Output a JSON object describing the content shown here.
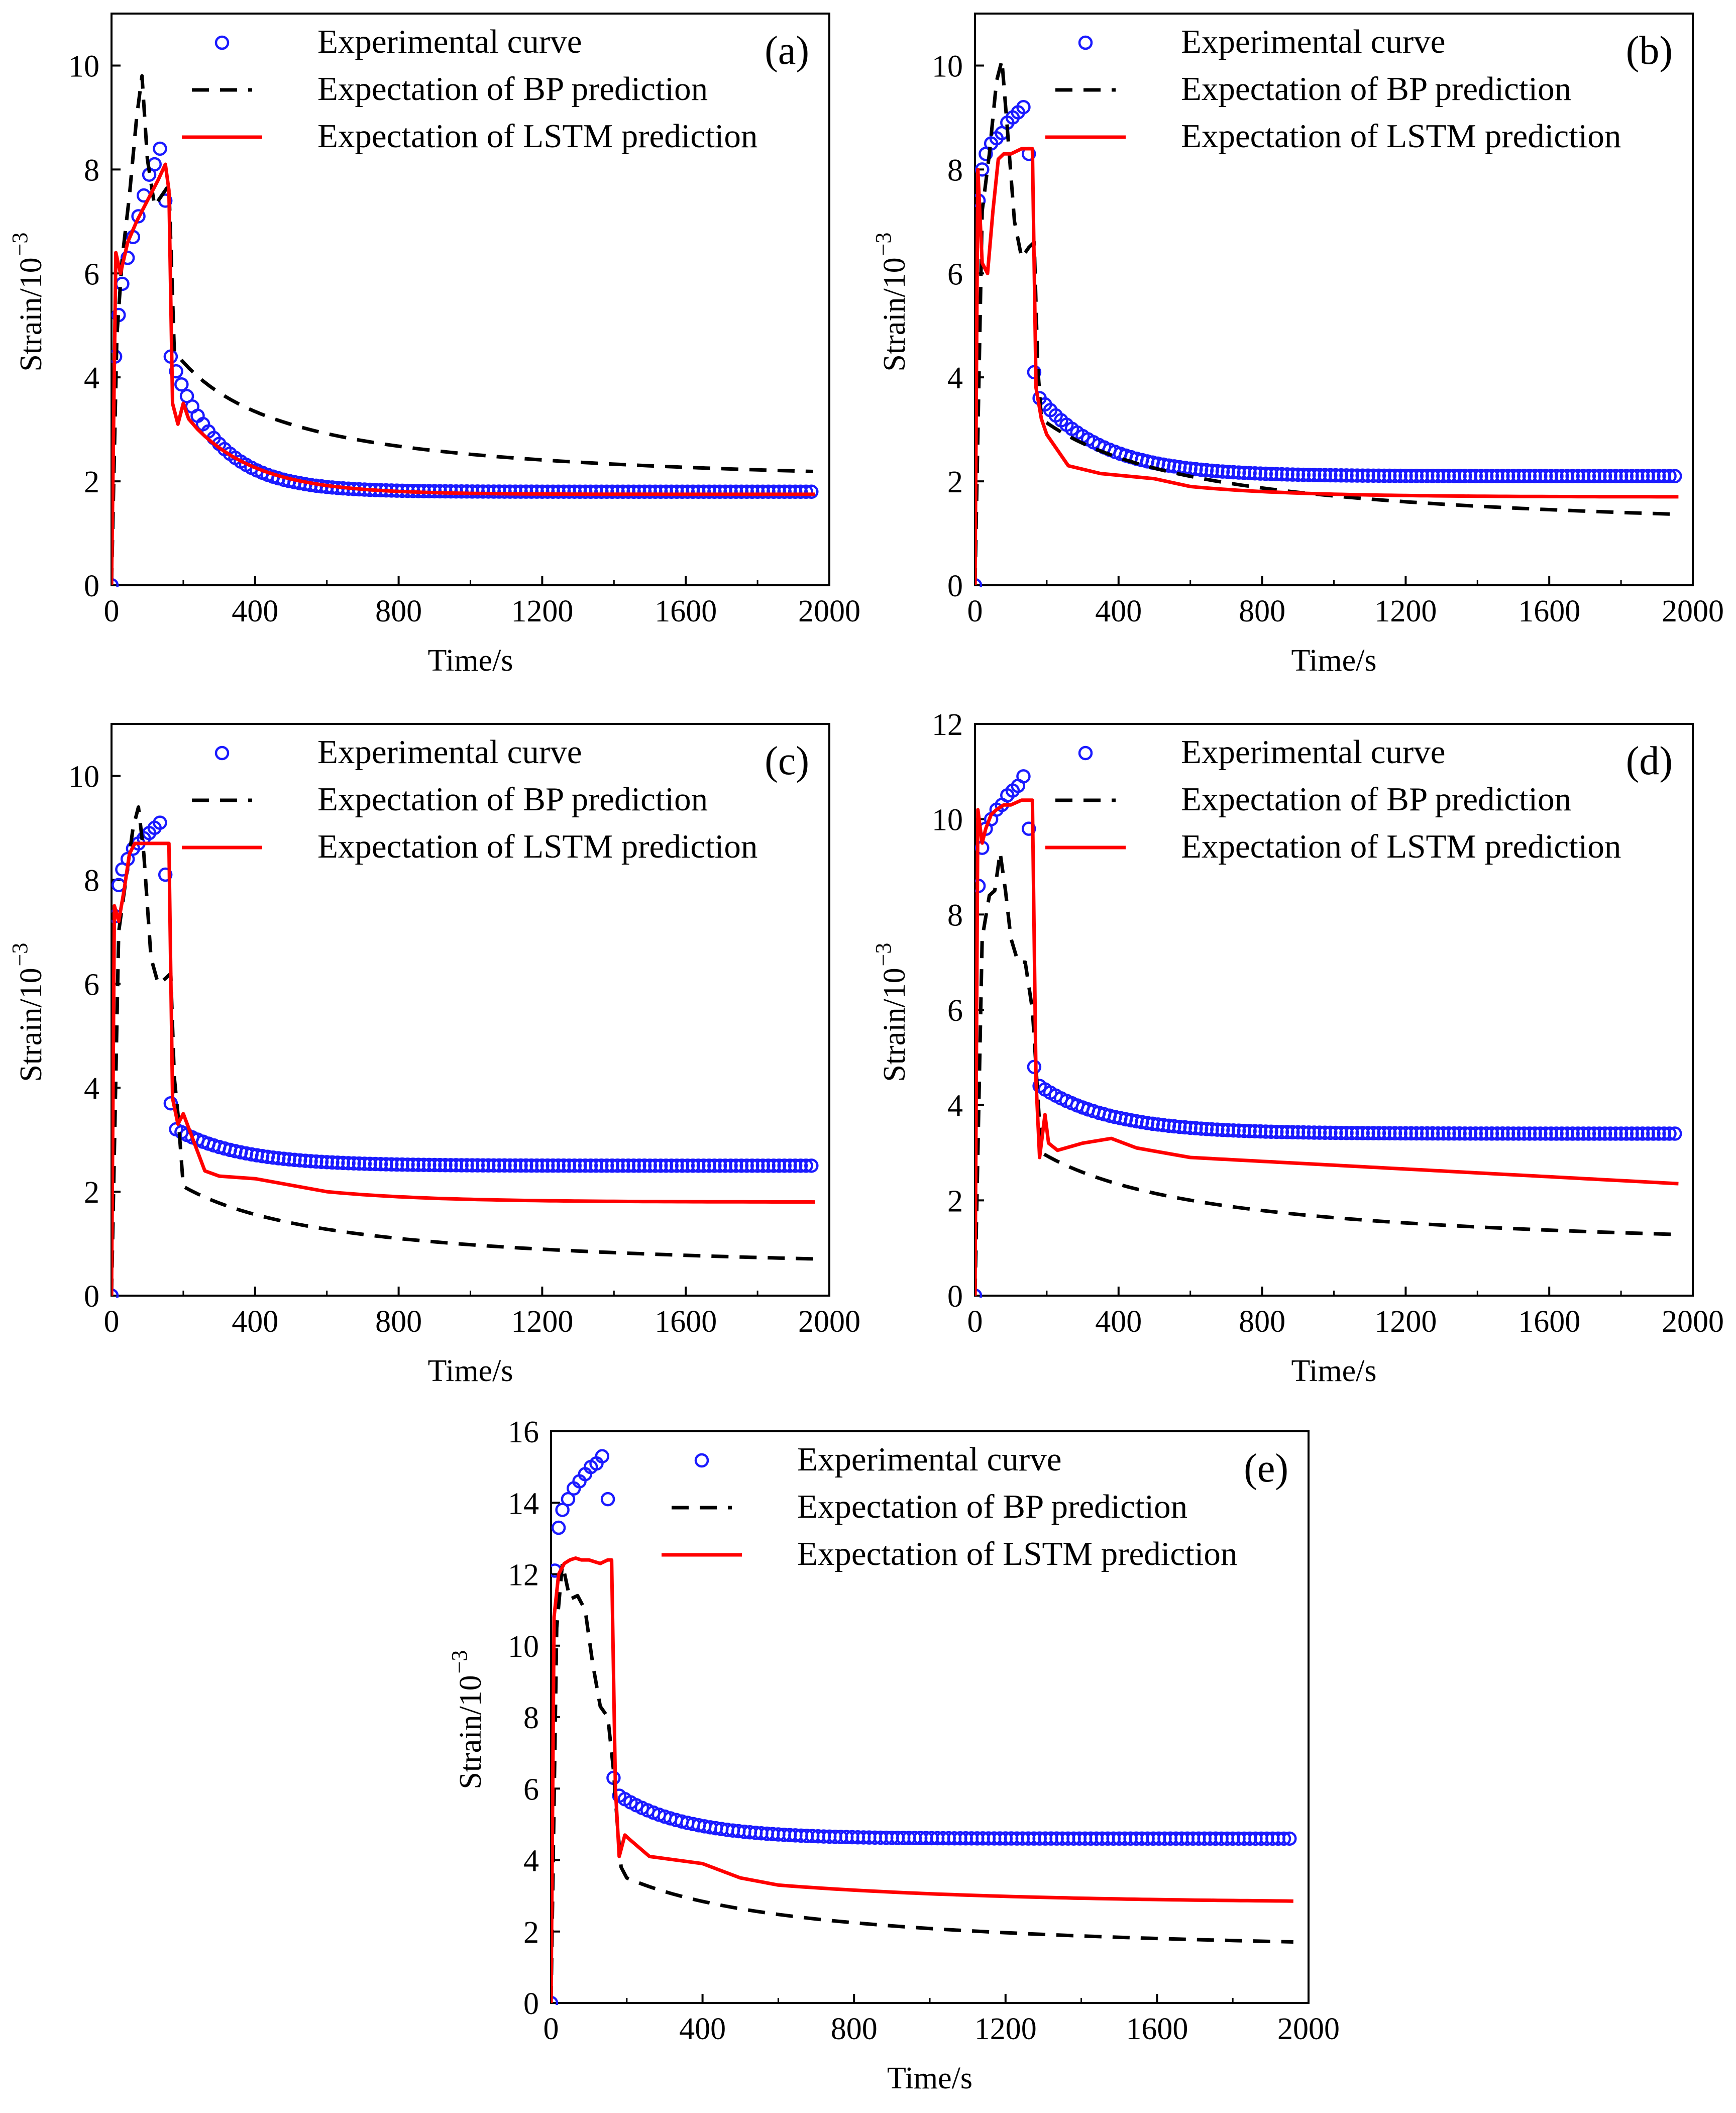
{
  "figure": {
    "panel_count": 5
  },
  "colors": {
    "experimental": "#1a1aff",
    "bp": "#000000",
    "lstm": "#ff0000"
  },
  "chart_data": [
    {
      "type": "line",
      "panel": "(a)",
      "xlabel": "Time/s",
      "ylabel": "Strain/10",
      "ylabel_exp": "−3",
      "xlim": [
        0,
        2000
      ],
      "ylim": [
        0,
        11
      ],
      "xticks": [
        "0",
        "400",
        "800",
        "1200",
        "1600",
        "2000"
      ],
      "xtick_values": [
        0,
        400,
        800,
        1200,
        1600,
        2000
      ],
      "yticks": [
        "0",
        "2",
        "4",
        "6",
        "8",
        "10"
      ],
      "ytick_values": [
        0,
        2,
        4,
        6,
        8,
        10
      ],
      "legend_position": "top-center",
      "series": [
        {
          "name": "Experimental curve",
          "style": "circles",
          "shape": "exp",
          "params": {
            "x": [
              0,
              10,
              20,
              30,
              45,
              60,
              75,
              90,
              105,
              120,
              135,
              150,
              165
            ],
            "y": [
              0,
              4.4,
              5.2,
              5.8,
              6.3,
              6.7,
              7.1,
              7.5,
              7.9,
              8.1,
              8.4,
              7.4,
              4.4
            ],
            "plateau": 1.8,
            "d1": 3.5,
            "decay": 130
          }
        },
        {
          "name": "Expectation of BP prediction",
          "style": "dashed",
          "shape": "bp",
          "params": {
            "x": [
              0,
              15,
              30,
              50,
              70,
              85,
              100,
              120,
              140,
              160,
              175
            ],
            "y": [
              0,
              4.8,
              6.3,
              7.5,
              9.0,
              9.8,
              8.2,
              7.3,
              7.5,
              7.7,
              4.5
            ],
            "plateau": 1.8,
            "d1": 2.5,
            "decay": 300
          }
        },
        {
          "name": "Expectation of LSTM prediction",
          "style": "solid",
          "shape": "lstm",
          "params": {
            "x": [
              0,
              12,
              25,
              45,
              70,
              100,
              130,
              150,
              160,
              170,
              185,
              200,
              215,
              240
            ],
            "y": [
              0,
              6.4,
              6.0,
              6.6,
              7.0,
              7.4,
              7.8,
              8.1,
              7.6,
              3.5,
              3.1,
              3.5,
              3.2,
              3.0
            ],
            "plateau": 1.75,
            "decay": 180
          }
        }
      ]
    },
    {
      "type": "line",
      "panel": "(b)",
      "xlabel": "Time/s",
      "ylabel": "Strain/10",
      "ylabel_exp": "−3",
      "xlim": [
        0,
        2000
      ],
      "ylim": [
        0,
        11
      ],
      "xticks": [
        "0",
        "400",
        "800",
        "1200",
        "1600",
        "2000"
      ],
      "xtick_values": [
        0,
        400,
        800,
        1200,
        1600,
        2000
      ],
      "yticks": [
        "0",
        "2",
        "4",
        "6",
        "8",
        "10"
      ],
      "ytick_values": [
        0,
        2,
        4,
        6,
        8,
        10
      ],
      "legend_position": "top-center",
      "series": [
        {
          "name": "Experimental curve",
          "style": "circles",
          "shape": "exp",
          "params": {
            "x": [
              0,
              10,
              20,
              30,
              45,
              60,
              75,
              90,
              105,
              120,
              135,
              150,
              165,
              180
            ],
            "y": [
              0,
              7.4,
              8.0,
              8.3,
              8.5,
              8.6,
              8.7,
              8.9,
              9.0,
              9.1,
              9.2,
              8.3,
              4.1,
              3.6
            ],
            "plateau": 2.1,
            "d1": 1.4,
            "decay": 180
          }
        },
        {
          "name": "Expectation of BP prediction",
          "style": "dashed",
          "shape": "bp",
          "params": {
            "x": [
              0,
              20,
              40,
              60,
              75,
              90,
              110,
              130,
              150,
              165,
              175,
              185
            ],
            "y": [
              0,
              7.2,
              8.3,
              9.7,
              10.1,
              8.8,
              7.0,
              6.3,
              6.5,
              6.6,
              4.2,
              3.2
            ],
            "plateau": 0.9,
            "d1": 2.3,
            "decay": 450
          }
        },
        {
          "name": "Expectation of LSTM prediction",
          "style": "solid",
          "shape": "lstm",
          "params": {
            "x": [
              0,
              8,
              20,
              35,
              50,
              65,
              80,
              100,
              130,
              150,
              160,
              170,
              185,
              200,
              260,
              350,
              500,
              600
            ],
            "y": [
              0,
              8.0,
              6.2,
              6.0,
              7.2,
              8.2,
              8.3,
              8.3,
              8.4,
              8.4,
              8.4,
              3.8,
              3.2,
              2.9,
              2.3,
              2.15,
              2.05,
              1.9
            ],
            "plateau": 1.7,
            "decay": 300
          }
        }
      ]
    },
    {
      "type": "line",
      "panel": "(c)",
      "xlabel": "Time/s",
      "ylabel": "Strain/10",
      "ylabel_exp": "−3",
      "xlim": [
        0,
        2000
      ],
      "ylim": [
        0,
        11
      ],
      "xticks": [
        "0",
        "400",
        "800",
        "1200",
        "1600",
        "2000"
      ],
      "xtick_values": [
        0,
        400,
        800,
        1200,
        1600,
        2000
      ],
      "yticks": [
        "0",
        "2",
        "4",
        "6",
        "8",
        "10"
      ],
      "ytick_values": [
        0,
        2,
        4,
        6,
        8,
        10
      ],
      "legend_position": "top-center",
      "series": [
        {
          "name": "Experimental curve",
          "style": "circles",
          "shape": "exp",
          "params": {
            "x": [
              0,
              10,
              20,
              30,
              45,
              60,
              75,
              90,
              105,
              120,
              135,
              150,
              165,
              180
            ],
            "y": [
              0,
              7.3,
              7.9,
              8.2,
              8.4,
              8.6,
              8.7,
              8.8,
              8.9,
              9.0,
              9.1,
              8.1,
              3.7,
              3.2
            ],
            "plateau": 2.5,
            "d1": 0.7,
            "decay": 180
          }
        },
        {
          "name": "Expectation of BP prediction",
          "style": "dashed",
          "shape": "bp",
          "params": {
            "x": [
              0,
              20,
              40,
              60,
              75,
              90,
              110,
              130,
              150,
              165,
              175,
              185,
              200
            ],
            "y": [
              0,
              7.0,
              8.0,
              9.0,
              9.4,
              8.5,
              6.5,
              6.0,
              6.1,
              6.2,
              4.2,
              3.5,
              2.1
            ],
            "plateau": 0.35,
            "d1": 1.6,
            "decay": 450
          }
        },
        {
          "name": "Expectation of LSTM prediction",
          "style": "solid",
          "shape": "lstm",
          "params": {
            "x": [
              0,
              8,
              20,
              35,
              50,
              65,
              80,
              100,
              130,
              150,
              160,
              170,
              185,
              200,
              260,
              300,
              400,
              600
            ],
            "y": [
              0,
              7.5,
              7.2,
              7.8,
              8.5,
              8.7,
              8.7,
              8.7,
              8.7,
              8.7,
              8.7,
              3.8,
              3.3,
              3.5,
              2.4,
              2.3,
              2.25,
              2.0
            ],
            "plateau": 1.8,
            "decay": 300
          }
        }
      ]
    },
    {
      "type": "line",
      "panel": "(d)",
      "xlabel": "Time/s",
      "ylabel": "Strain/10",
      "ylabel_exp": "−3",
      "xlim": [
        0,
        2000
      ],
      "ylim": [
        0,
        12
      ],
      "xticks": [
        "0",
        "400",
        "800",
        "1200",
        "1600",
        "2000"
      ],
      "xtick_values": [
        0,
        400,
        800,
        1200,
        1600,
        2000
      ],
      "yticks": [
        "0",
        "2",
        "4",
        "6",
        "8",
        "10",
        "12"
      ],
      "ytick_values": [
        0,
        2,
        4,
        6,
        8,
        10,
        12
      ],
      "legend_position": "top-center",
      "series": [
        {
          "name": "Experimental curve",
          "style": "circles",
          "shape": "exp",
          "params": {
            "x": [
              0,
              10,
              20,
              30,
              45,
              60,
              75,
              90,
              105,
              120,
              135,
              150,
              165,
              180
            ],
            "y": [
              0,
              8.6,
              9.4,
              9.8,
              10.0,
              10.2,
              10.3,
              10.5,
              10.6,
              10.7,
              10.9,
              9.8,
              4.8,
              4.4
            ],
            "plateau": 3.4,
            "d1": 1.0,
            "decay": 200
          }
        },
        {
          "name": "Expectation of BP prediction",
          "style": "dashed",
          "shape": "bp",
          "params": {
            "x": [
              0,
              20,
              40,
              55,
              70,
              85,
              100,
              120,
              140,
              160,
              175,
              185
            ],
            "y": [
              0,
              7.5,
              8.4,
              8.5,
              9.3,
              8.5,
              7.5,
              7.0,
              7.0,
              6.0,
              4.2,
              3.0
            ],
            "plateau": 0.8,
            "d1": 2.3,
            "decay": 500
          }
        },
        {
          "name": "Expectation of LSTM prediction",
          "style": "solid",
          "shape": "lstm",
          "params": {
            "x": [
              0,
              8,
              20,
              30,
              45,
              60,
              80,
              100,
              130,
              150,
              160,
              170,
              180,
              195,
              205,
              230,
              300,
              380,
              450,
              600
            ],
            "y": [
              0,
              10.2,
              9.5,
              9.8,
              10.1,
              10.2,
              10.3,
              10.3,
              10.4,
              10.4,
              10.4,
              4.5,
              2.9,
              3.8,
              3.2,
              3.05,
              3.2,
              3.3,
              3.1,
              2.9
            ],
            "plateau": 2.35,
            "lin": true
          }
        }
      ]
    },
    {
      "type": "line",
      "panel": "(e)",
      "xlabel": "Time/s",
      "ylabel": "Strain/10",
      "ylabel_exp": "−3",
      "xlim": [
        0,
        2000
      ],
      "ylim": [
        0,
        16
      ],
      "xticks": [
        "0",
        "400",
        "800",
        "1200",
        "1600",
        "2000"
      ],
      "xtick_values": [
        0,
        400,
        800,
        1200,
        1600,
        2000
      ],
      "yticks": [
        "0",
        "2",
        "4",
        "6",
        "8",
        "10",
        "12",
        "14",
        "16"
      ],
      "ytick_values": [
        0,
        2,
        4,
        6,
        8,
        10,
        12,
        14,
        16
      ],
      "legend_position": "top-center",
      "series": [
        {
          "name": "Experimental curve",
          "style": "circles",
          "shape": "exp",
          "params": {
            "x": [
              0,
              10,
              20,
              30,
              45,
              60,
              75,
              90,
              105,
              120,
              135,
              150,
              165,
              180
            ],
            "y": [
              0,
              12.1,
              13.3,
              13.8,
              14.1,
              14.4,
              14.6,
              14.8,
              15.0,
              15.1,
              15.3,
              14.1,
              6.3,
              5.8
            ],
            "plateau": 4.6,
            "d1": 1.0,
            "decay": 180
          }
        },
        {
          "name": "Expectation of BP prediction",
          "style": "dashed",
          "shape": "bp",
          "params": {
            "x": [
              0,
              15,
              30,
              50,
              70,
              90,
              110,
              130,
              150,
              165,
              175,
              185,
              200
            ],
            "y": [
              0,
              10.5,
              12.3,
              11.3,
              11.4,
              11.0,
              9.5,
              8.3,
              8.0,
              6.5,
              5.0,
              3.8,
              3.5
            ],
            "plateau": 1.2,
            "d1": 2.3,
            "decay": 500
          }
        },
        {
          "name": "Expectation of LSTM prediction",
          "style": "solid",
          "shape": "lstm",
          "params": {
            "x": [
              0,
              8,
              20,
              35,
              50,
              65,
              80,
              100,
              130,
              150,
              160,
              170,
              180,
              195,
              205,
              260,
              400,
              500,
              600
            ],
            "y": [
              0,
              10.8,
              12.0,
              12.3,
              12.4,
              12.45,
              12.4,
              12.4,
              12.3,
              12.4,
              12.4,
              6.0,
              4.1,
              4.7,
              4.6,
              4.1,
              3.9,
              3.5,
              3.3
            ],
            "plateau": 2.8,
            "decay": 600
          }
        }
      ]
    }
  ]
}
